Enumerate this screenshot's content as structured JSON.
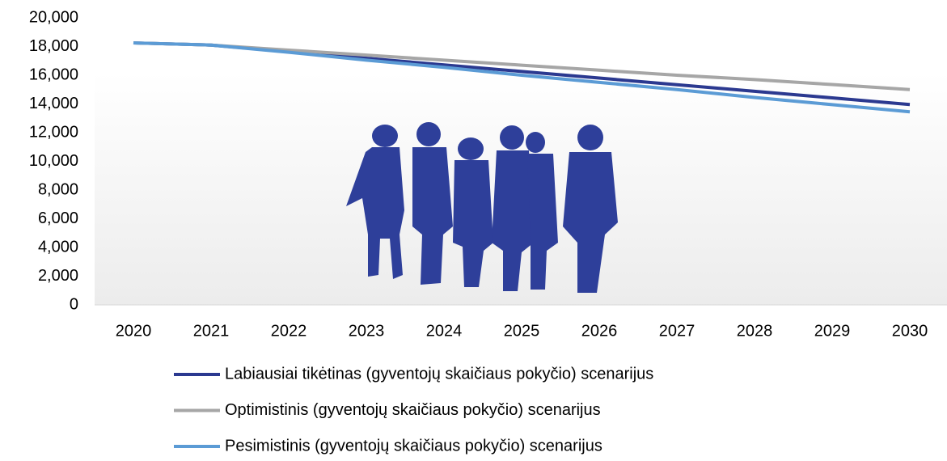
{
  "chart_data": {
    "type": "line",
    "categories": [
      "2020",
      "2021",
      "2022",
      "2023",
      "2024",
      "2025",
      "2026",
      "2027",
      "2028",
      "2029",
      "2030"
    ],
    "series": [
      {
        "name": "Labiausiai tikėtinas (gyventojų skaičiaus pokyčio) scenarijus",
        "color": "#2b3990",
        "values": [
          18250,
          18100,
          17640,
          17180,
          16720,
          16260,
          15800,
          15340,
          14880,
          14420,
          13960
        ]
      },
      {
        "name": "Optimistinis (gyventojų skaičiaus pokyčio) scenarijus",
        "color": "#a6a6a6",
        "values": [
          18250,
          18100,
          17750,
          17400,
          17050,
          16700,
          16350,
          16000,
          15700,
          15350,
          15000
        ]
      },
      {
        "name": "Pesimistinis (gyventojų skaičiaus pokyčio) scenarijus",
        "color": "#5b9bd5",
        "values": [
          18250,
          18100,
          17600,
          17050,
          16550,
          16000,
          15500,
          15000,
          14450,
          13950,
          13450
        ]
      }
    ],
    "ylim": [
      0,
      20000
    ],
    "yticks": [
      0,
      {
        "value": 2000,
        "label": "2,000"
      },
      {
        "value": 4000,
        "label": "4,000"
      },
      {
        "value": 6000,
        "label": "6,000"
      },
      {
        "value": 8000,
        "label": "8,000"
      },
      {
        "value": 10000,
        "label": "10,000"
      },
      {
        "value": 12000,
        "label": "12,000"
      },
      {
        "value": 14000,
        "label": "14,000"
      },
      {
        "value": 16000,
        "label": "16,000"
      },
      {
        "value": 18000,
        "label": "18,000"
      },
      {
        "value": 20000,
        "label": "20,000"
      }
    ],
    "legend": "bottom"
  }
}
